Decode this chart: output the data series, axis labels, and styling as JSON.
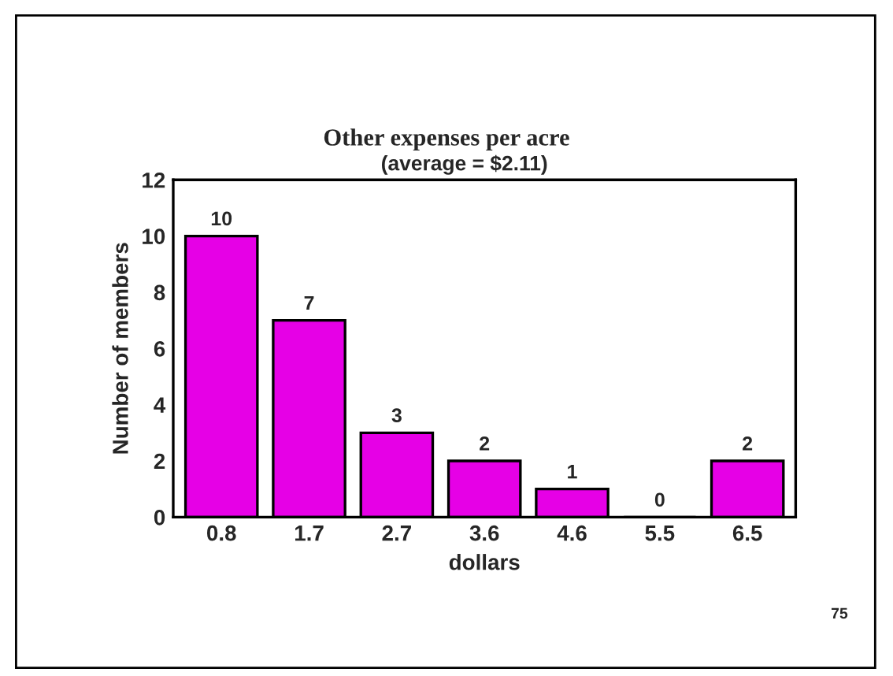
{
  "chart_data": {
    "type": "bar",
    "title": "Other expenses per acre",
    "subtitle": "(average = $2.11)",
    "xlabel": "dollars",
    "ylabel": "Number of members",
    "categories": [
      "0.8",
      "1.7",
      "2.7",
      "3.6",
      "4.6",
      "5.5",
      "6.5"
    ],
    "values": [
      10,
      7,
      3,
      2,
      1,
      0,
      2
    ],
    "color": "#e600e6",
    "ylim": [
      0,
      12
    ],
    "yticks": [
      0,
      2,
      4,
      6,
      8,
      10,
      12
    ],
    "grid": false,
    "data_labels": true,
    "annotations": [
      "75"
    ]
  }
}
